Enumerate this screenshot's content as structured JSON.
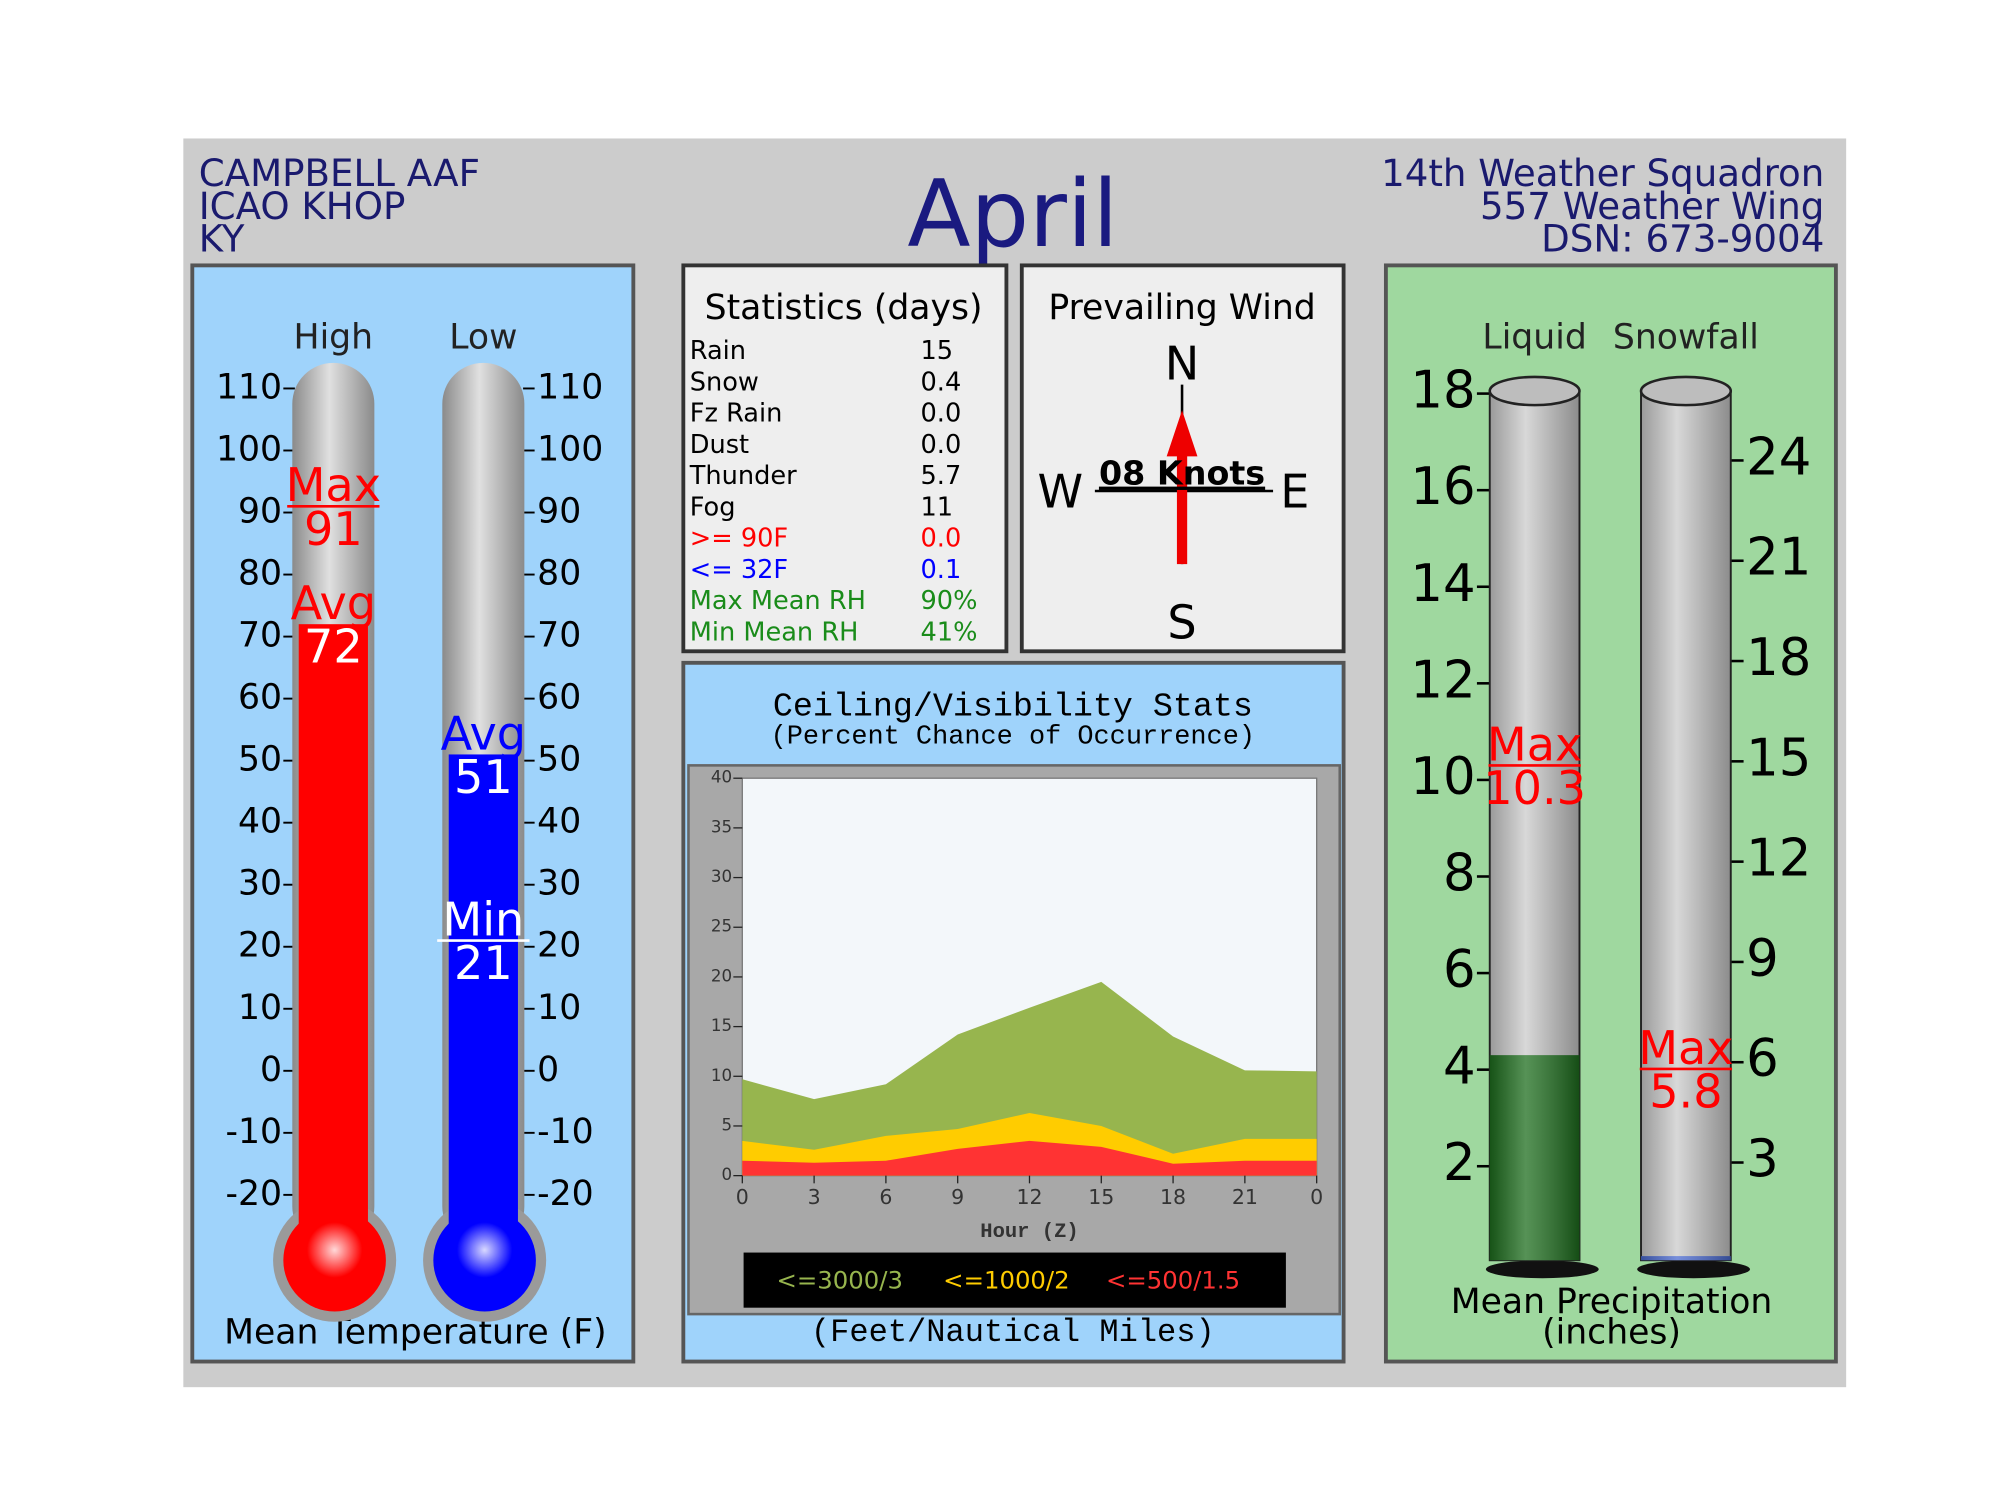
{
  "header": {
    "station": [
      "CAMPBELL AAF",
      "ICAO KHOP",
      "KY"
    ],
    "month": "April",
    "unit": [
      "14th Weather Squadron",
      "557 Weather Wing",
      "DSN: 673-9004"
    ]
  },
  "statistics": {
    "title": "Statistics (days)",
    "rows": [
      {
        "label": "Rain",
        "value": "15",
        "color": "#000000"
      },
      {
        "label": "Snow",
        "value": "0.4",
        "color": "#000000"
      },
      {
        "label": "Fz Rain",
        "value": "0.0",
        "color": "#000000"
      },
      {
        "label": "Dust",
        "value": "0.0",
        "color": "#000000"
      },
      {
        "label": "Thunder",
        "value": "5.7",
        "color": "#000000"
      },
      {
        "label": "Fog",
        "value": "11",
        "color": "#000000"
      },
      {
        "label": ">= 90F",
        "value": "0.0",
        "color": "#ff0000"
      },
      {
        "label": "<= 32F",
        "value": "0.1",
        "color": "#0000ff"
      },
      {
        "label": "Max Mean RH",
        "value": "90%",
        "color": "#1a8c1a"
      },
      {
        "label": "Min Mean RH",
        "value": "41%",
        "color": "#1a8c1a"
      }
    ]
  },
  "wind": {
    "title": "Prevailing Wind",
    "north": "N",
    "east": "E",
    "south": "S",
    "west": "W",
    "speed": "08 Knots"
  },
  "chart_data": [
    {
      "type": "thermometer",
      "title": "Mean Temperature (F)",
      "ylim": [
        -20,
        110
      ],
      "yticks": [
        -20,
        -10,
        0,
        10,
        20,
        30,
        40,
        50,
        60,
        70,
        80,
        90,
        100,
        110
      ],
      "marker_labels": {
        "max": "Max",
        "avg": "Avg",
        "min": "Min"
      },
      "series": [
        {
          "name": "High",
          "color": "#ff0000",
          "max": 91,
          "avg": 72
        },
        {
          "name": "Low",
          "color": "#0000ff",
          "avg": 51,
          "min": 21
        }
      ]
    },
    {
      "type": "area",
      "title": "Ceiling/Visibility Stats",
      "subtitle": "(Percent Chance of Occurrence)",
      "xlabel": "Hour (Z)",
      "footer": "(Feet/Nautical Miles)",
      "x": [
        0,
        3,
        6,
        9,
        12,
        15,
        18,
        21,
        24
      ],
      "xlim": [
        0,
        24
      ],
      "xticks": [
        0,
        3,
        6,
        9,
        12,
        15,
        18,
        21,
        {
          "value": 24,
          "label": "0"
        }
      ],
      "ylim": [
        0,
        40
      ],
      "yticks": [
        0,
        5,
        10,
        15,
        20,
        25,
        30,
        35,
        40
      ],
      "series": [
        {
          "name": "<=3000/3",
          "color": "#97b54e",
          "values": [
            9.7,
            7.7,
            9.2,
            14.2,
            16.9,
            19.5,
            14,
            10.6,
            10.5
          ]
        },
        {
          "name": "<=1000/2",
          "color": "#ffcc00",
          "values": [
            3.5,
            2.6,
            4,
            4.7,
            6.3,
            5,
            2.2,
            3.7,
            3.7
          ]
        },
        {
          "name": "<=500/1.5",
          "color": "#ff3333",
          "values": [
            1.5,
            1.3,
            1.5,
            2.7,
            3.5,
            2.9,
            1.2,
            1.5,
            1.5
          ]
        }
      ]
    },
    {
      "type": "tube",
      "title": "Mean Precipitation",
      "subtitle": "(inches)",
      "ylim": [
        0,
        18
      ],
      "yticks": [
        2,
        4,
        6,
        8,
        10,
        12,
        14,
        16,
        18
      ],
      "y2lim": [
        0,
        26
      ],
      "y2ticks": [
        3,
        6,
        9,
        12,
        15,
        18,
        21,
        24
      ],
      "marker_labels": {
        "max": "Max"
      },
      "series": [
        {
          "name": "Liquid",
          "color": "#1e6e1e",
          "mean": 4.3,
          "max": 10.3
        },
        {
          "name": "Snowfall",
          "color": "#4a6ad0",
          "mean": 0.2,
          "max": 5.8,
          "axis": "y2"
        }
      ]
    }
  ]
}
